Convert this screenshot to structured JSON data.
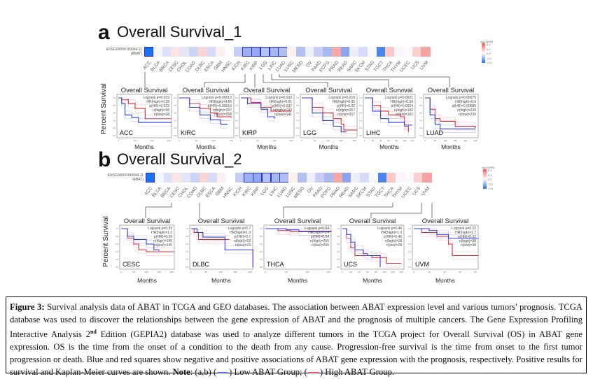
{
  "section_a": {
    "letter": "a",
    "title": "Overall Survival_1"
  },
  "section_b": {
    "letter": "b",
    "title": "Overall Survival_2"
  },
  "heatmap": {
    "gene_id": "ENSG00000183044.11",
    "gene_name": "(ABAT)",
    "legend_title": "log10(HR)",
    "legend_ticks": [
      "0.4",
      "0.2",
      "0.0",
      "-0.2",
      "-0.4"
    ],
    "cancers": [
      "ACC",
      "BLCA",
      "BRCA",
      "CESC",
      "CHOL",
      "COAD",
      "DLBC",
      "ESCA",
      "GBM",
      "HNSC",
      "KICH",
      "KIRC",
      "KIRP",
      "LGG",
      "LIHC",
      "LUAD",
      "LUSC",
      "MESO",
      "OV",
      "PAAD",
      "PCPG",
      "PRAD",
      "READ",
      "SARC",
      "SKCM",
      "STAD",
      "TGCT",
      "THCA",
      "THYM",
      "UCEC",
      "UCS",
      "UVM"
    ],
    "colors": [
      "#1a73ee",
      "#f5f5fc",
      "#dde0f8",
      "#fde4e4",
      "#e4e6f8",
      "#ccd4f6",
      "#fbd4d4",
      "#d8daf6",
      "#fdf0f0",
      "#ffffff",
      "#c4cef6",
      "#9fb0f0",
      "#94a8f0",
      "#b4c2f4",
      "#a8b8f2",
      "#b0bcf2",
      "#fdf0f0",
      "#b0c0f2",
      "#eeeffa",
      "#cccdf4",
      "#aab8f2",
      "#f9a6a6",
      "#8aa4f0",
      "#eeeefa",
      "#d8dafa",
      "#f8f8fc",
      "#4a86ec",
      "#fcc8c8",
      "#f6f6fc",
      "#fafafc",
      "#fcd0d0",
      "#f8a2a2"
    ],
    "significant_a": [
      "ACC",
      "KIRC",
      "KIRP",
      "LGG",
      "LIHC",
      "LUAD"
    ],
    "significant_b": [
      "ACC",
      "KIRC",
      "KIRP",
      "LGG",
      "LIHC",
      "LUAD"
    ]
  },
  "axis": {
    "ylabel": "Percent Survival",
    "xlabel": "Months",
    "plot_title": "Overall Survival",
    "yticks": [
      "0.0",
      "0.2",
      "0.4",
      "0.6",
      "0.8",
      "1.0"
    ]
  },
  "chart_data": [
    {
      "type": "line",
      "cancer": "ACC",
      "logrank": "Logrank p=0.019",
      "hr": "HR(high)=0.39",
      "p_hr": "p(HR)=0.022",
      "n_high": "n(high)=38",
      "n_low": "n(low)=38",
      "xlim": [
        0,
        150
      ],
      "xticks": [
        0,
        50,
        100,
        150
      ],
      "series": [
        {
          "name": "High ABAT",
          "color": "#e8262a",
          "points": [
            [
              0,
              1
            ],
            [
              10,
              0.95
            ],
            [
              30,
              0.85
            ],
            [
              50,
              0.72
            ],
            [
              80,
              0.45
            ],
            [
              160,
              0.45
            ]
          ]
        },
        {
          "name": "Low ABAT",
          "color": "#2a3ae8",
          "points": [
            [
              0,
              1
            ],
            [
              10,
              0.85
            ],
            [
              20,
              0.55
            ],
            [
              40,
              0.48
            ],
            [
              60,
              0.35
            ],
            [
              160,
              0.35
            ]
          ]
        }
      ]
    },
    {
      "type": "line",
      "cancer": "KIRC",
      "logrank": "Logrank p=0.00013",
      "hr": "HR(high)=0.66",
      "p_hr": "p(HR)=0.00016",
      "n_high": "n(high)=257",
      "n_low": "n(low)=258",
      "xlim": [
        0,
        150
      ],
      "xticks": [
        0,
        50,
        100,
        150
      ],
      "series": [
        {
          "name": "High ABAT",
          "color": "#e8262a",
          "points": [
            [
              0,
              1
            ],
            [
              30,
              0.85
            ],
            [
              60,
              0.72
            ],
            [
              90,
              0.6
            ],
            [
              110,
              0.5
            ],
            [
              150,
              0.47
            ]
          ]
        },
        {
          "name": "Low ABAT",
          "color": "#2a3ae8",
          "points": [
            [
              0,
              1
            ],
            [
              30,
              0.75
            ],
            [
              60,
              0.55
            ],
            [
              90,
              0.42
            ],
            [
              120,
              0.3
            ],
            [
              140,
              0.3
            ]
          ]
        }
      ]
    },
    {
      "type": "line",
      "cancer": "KIRP",
      "logrank": "Logrank p=0.033",
      "hr": "HR(high)=0.61",
      "p_hr": "p(HR)=0.037",
      "n_high": "n(high)=143",
      "n_low": "n(low)=141",
      "xlim": [
        0,
        150
      ],
      "xticks": [
        0,
        50,
        100,
        150
      ],
      "series": [
        {
          "name": "High ABAT",
          "color": "#e8262a",
          "points": [
            [
              0,
              1
            ],
            [
              30,
              0.88
            ],
            [
              60,
              0.75
            ],
            [
              90,
              0.65
            ],
            [
              150,
              0.65
            ]
          ]
        },
        {
          "name": "Low ABAT",
          "color": "#2a3ae8",
          "points": [
            [
              0,
              1
            ],
            [
              20,
              0.85
            ],
            [
              60,
              0.7
            ],
            [
              80,
              0.5
            ],
            [
              100,
              0.45
            ]
          ]
        }
      ]
    },
    {
      "type": "line",
      "cancer": "LGG",
      "logrank": "Logrank p=0.019",
      "hr": "HR(high)=0.65",
      "p_hr": "p(HR)=0.02",
      "n_high": "n(high)=257",
      "n_low": "n(low)=257",
      "xlim": [
        0,
        200
      ],
      "xticks": [
        0,
        50,
        100,
        150,
        200
      ],
      "series": [
        {
          "name": "High ABAT",
          "color": "#e8262a",
          "points": [
            [
              0,
              1
            ],
            [
              40,
              0.75
            ],
            [
              80,
              0.6
            ],
            [
              120,
              0.45
            ],
            [
              150,
              0.3
            ],
            [
              160,
              0.15
            ],
            [
              210,
              0.15
            ]
          ]
        },
        {
          "name": "Low ABAT",
          "color": "#2a3ae8",
          "points": [
            [
              0,
              1
            ],
            [
              40,
              0.6
            ],
            [
              80,
              0.4
            ],
            [
              120,
              0.25
            ],
            [
              150,
              0.1
            ],
            [
              170,
              0.1
            ]
          ]
        }
      ]
    },
    {
      "type": "line",
      "cancer": "LIHC",
      "logrank": "Logrank p=0.0021",
      "hr": "HR(high)=0.54",
      "p_hr": "p(HR)=0.0024",
      "n_high": "n(high)=182",
      "n_low": "n(low)=182",
      "xlim": [
        0,
        120
      ],
      "xticks": [
        0,
        20,
        40,
        60,
        80,
        100,
        120
      ],
      "series": [
        {
          "name": "High ABAT",
          "color": "#e8262a",
          "points": [
            [
              0,
              1
            ],
            [
              20,
              0.8
            ],
            [
              40,
              0.65
            ],
            [
              60,
              0.55
            ],
            [
              90,
              0.5
            ],
            [
              100,
              0.25
            ],
            [
              110,
              0.1
            ]
          ]
        },
        {
          "name": "Low ABAT",
          "color": "#2a3ae8",
          "points": [
            [
              0,
              1
            ],
            [
              20,
              0.65
            ],
            [
              40,
              0.45
            ],
            [
              60,
              0.35
            ],
            [
              100,
              0.28
            ],
            [
              120,
              0.28
            ]
          ]
        }
      ]
    },
    {
      "type": "line",
      "cancer": "LUAD",
      "logrank": "Logrank p=0.00075",
      "hr": "HR(high)=0.6",
      "p_hr": "p(HR)=0.00085",
      "n_high": "n(high)=239",
      "n_low": "n(low)=239",
      "xlim": [
        0,
        250
      ],
      "xticks": [
        0,
        50,
        100,
        150,
        200,
        250
      ],
      "series": [
        {
          "name": "High ABAT",
          "color": "#e8262a",
          "points": [
            [
              0,
              1
            ],
            [
              25,
              0.7
            ],
            [
              50,
              0.45
            ],
            [
              75,
              0.38
            ],
            [
              150,
              0.25
            ],
            [
              250,
              0.2
            ]
          ]
        },
        {
          "name": "Low ABAT",
          "color": "#2a3ae8",
          "points": [
            [
              0,
              1
            ],
            [
              25,
              0.55
            ],
            [
              50,
              0.3
            ],
            [
              75,
              0.18
            ],
            [
              250,
              0.18
            ]
          ]
        }
      ]
    },
    {
      "type": "line",
      "cancer": "CESC",
      "logrank": "Logrank p=0.39",
      "hr": "HR(high)=1.2",
      "p_hr": "p(HR)=0.39",
      "n_high": "n(high)=145",
      "n_low": "n(low)=145",
      "xlim": [
        0,
        200
      ],
      "xticks": [
        0,
        50,
        100,
        150,
        200
      ],
      "series": [
        {
          "name": "High ABAT",
          "color": "#e8262a",
          "points": [
            [
              0,
              1
            ],
            [
              25,
              0.75
            ],
            [
              50,
              0.6
            ],
            [
              70,
              0.45
            ],
            [
              100,
              0.4
            ],
            [
              210,
              0.4
            ]
          ]
        },
        {
          "name": "Low ABAT",
          "color": "#2a3ae8",
          "points": [
            [
              0,
              1
            ],
            [
              25,
              0.8
            ],
            [
              50,
              0.72
            ],
            [
              100,
              0.6
            ],
            [
              130,
              0.45
            ],
            [
              150,
              0.42
            ]
          ]
        }
      ]
    },
    {
      "type": "line",
      "cancer": "DLBC",
      "logrank": "Logrank p=0.7",
      "hr": "HR(high)=1.3",
      "p_hr": "p(HR)=0.7",
      "n_high": "n(high)=23",
      "n_low": "n(low)=23",
      "xlim": [
        0,
        200
      ],
      "xticks": [
        0,
        50,
        100,
        150,
        200
      ],
      "series": [
        {
          "name": "High ABAT",
          "color": "#e8262a",
          "points": [
            [
              0,
              1
            ],
            [
              10,
              0.9
            ],
            [
              25,
              0.72
            ],
            [
              130,
              0.72
            ]
          ]
        },
        {
          "name": "Low ABAT",
          "color": "#2a3ae8",
          "points": [
            [
              0,
              1
            ],
            [
              20,
              0.9
            ],
            [
              40,
              0.78
            ],
            [
              115,
              0.78
            ],
            [
              115,
              0.45
            ],
            [
              210,
              0.45
            ],
            [
              210,
              0
            ]
          ]
        }
      ]
    },
    {
      "type": "line",
      "cancer": "THCA",
      "logrank": "Logrank p=0.54",
      "hr": "HR(high)=1.4",
      "p_hr": "p(HR)=0.54",
      "n_high": "n(high)=255",
      "n_low": "n(low)=255",
      "xlim": [
        0,
        150
      ],
      "xticks": [
        0,
        50,
        100,
        150
      ],
      "series": [
        {
          "name": "High ABAT",
          "color": "#e8262a",
          "points": [
            [
              0,
              1
            ],
            [
              30,
              0.95
            ],
            [
              60,
              0.92
            ],
            [
              160,
              0.92
            ]
          ]
        },
        {
          "name": "Low ABAT",
          "color": "#2a3ae8",
          "points": [
            [
              0,
              1
            ],
            [
              50,
              0.97
            ],
            [
              80,
              0.93
            ],
            [
              160,
              0.93
            ]
          ]
        }
      ]
    },
    {
      "type": "line",
      "cancer": "UCS",
      "logrank": "Logrank p=0.46",
      "hr": "HR(high)=1.3",
      "p_hr": "p(HR)=0.46",
      "n_high": "n(high)=28",
      "n_low": "n(low)=28",
      "xlim": [
        0,
        140
      ],
      "xticks": [
        0,
        20,
        40,
        60,
        80,
        100,
        120,
        140
      ],
      "series": [
        {
          "name": "High ABAT",
          "color": "#e8262a",
          "points": [
            [
              0,
              1
            ],
            [
              10,
              0.75
            ],
            [
              20,
              0.5
            ],
            [
              30,
              0.3
            ],
            [
              70,
              0.25
            ],
            [
              105,
              0.25
            ],
            [
              105,
              0.1
            ],
            [
              140,
              0.1
            ]
          ]
        },
        {
          "name": "Low ABAT",
          "color": "#2a3ae8",
          "points": [
            [
              0,
              1
            ],
            [
              10,
              0.85
            ],
            [
              20,
              0.65
            ],
            [
              30,
              0.45
            ],
            [
              50,
              0.35
            ],
            [
              60,
              0.3
            ],
            [
              90,
              0.3
            ],
            [
              90,
              0
            ]
          ]
        }
      ]
    },
    {
      "type": "line",
      "cancer": "UVM",
      "logrank": "Logrank p=0.22",
      "hr": "HR(high)=1.7",
      "p_hr": "p(HR)=0.22",
      "n_high": "n(high)=38",
      "n_low": "n(low)=38",
      "xlim": [
        0,
        80
      ],
      "xticks": [
        0,
        20,
        40,
        60,
        80
      ],
      "series": [
        {
          "name": "High ABAT",
          "color": "#e8262a",
          "points": [
            [
              0,
              1
            ],
            [
              10,
              0.9
            ],
            [
              30,
              0.8
            ],
            [
              45,
              0.6
            ],
            [
              50,
              0.3
            ],
            [
              85,
              0.3
            ]
          ]
        },
        {
          "name": "Low ABAT",
          "color": "#2a3ae8",
          "points": [
            [
              0,
              1
            ],
            [
              20,
              0.95
            ],
            [
              30,
              0.85
            ],
            [
              45,
              0.75
            ],
            [
              85,
              0.75
            ]
          ]
        }
      ]
    }
  ],
  "caption": {
    "label": "Figure 3:",
    "text1": " Survival analysis data of ABAT in TCGA and GEO databases. The association between ABAT expression level and various tumors' prognosis. TCGA database was used to discover the relationships between the gene expression of ABAT and the prognosis of multiple cancers. The Gene Expression Profiling Interactive Analysis 2",
    "sup": "nd",
    "text2": " Edition (GEPIA2) database was used to analyze different tumors in the TCGA project for Overall Survival (OS) in ABAT gene expression. OS is the time from the onset of a condition to the death from any cause. Progression-free survival is the time from onset to the first tumor progression or death. Blue and red squares show negative and positive associations of ABAT gene expression with the prognosis, respectively. Positive results for survival and Kaplan-Meier curves are shown. ",
    "note_label": "Note",
    "note_text": ": (a,b) (",
    "low_label": ") Low ABAT Group; (",
    "high_label": ") High ABAT Group.",
    "low_color": "#5566ee",
    "high_color": "#ee5566"
  }
}
